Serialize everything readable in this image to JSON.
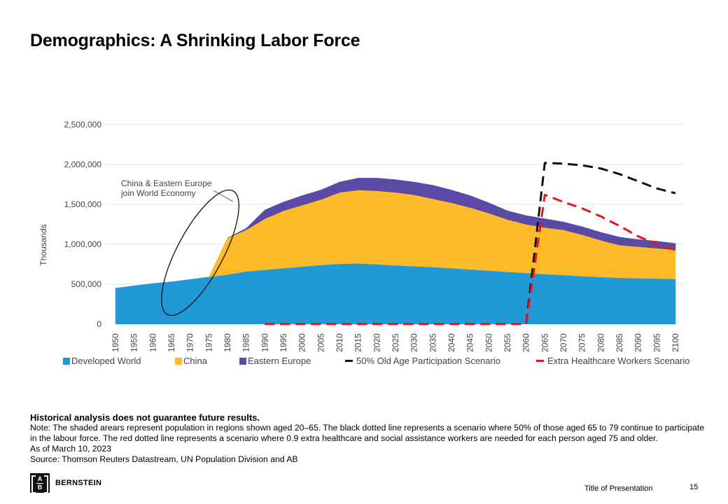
{
  "page": {
    "title": "Demographics: A Shrinking Labor Force",
    "disclaimer": "Historical analysis does not guarantee future results.",
    "note": "Note: The shaded arears represent population in regions shown aged 20–65. The black dotted line represents a scenario where 50% of those aged 65 to 79 continue to participate in the labour force. The red dotted line represents a scenario where 0.9 extra healthcare and social assistance workers are needed for each person aged 75 and older.",
    "as_of": "As of March 10, 2023",
    "source": "Source: Thomson Reuters Datastream, UN Population Division and AB",
    "footer_title": "Title of Presentation",
    "page_number": "15",
    "logo_text": "BERNSTEIN",
    "logo_letters": [
      "A",
      "B"
    ]
  },
  "chart_data": {
    "type": "area",
    "stacked": true,
    "title": "",
    "xlabel": "",
    "ylabel": "Thousands",
    "ylim": [
      0,
      2500000
    ],
    "yticks": [
      0,
      500000,
      1000000,
      1500000,
      2000000,
      2500000
    ],
    "ytick_labels": [
      "0",
      "500,000",
      "1,000,000",
      "1,500,000",
      "2,000,000",
      "2,500,000"
    ],
    "grid": true,
    "legend_position": "bottom",
    "annotation": {
      "line1": "China & Eastern Europe",
      "line2": "join World Economy"
    },
    "x": [
      "1950",
      "1955",
      "1960",
      "1965",
      "1970",
      "1975",
      "1980",
      "1985",
      "1990",
      "1995",
      "2000",
      "2005",
      "2010",
      "2015",
      "2020",
      "2025",
      "2030",
      "2035",
      "2040",
      "2045",
      "2050",
      "2055",
      "2060",
      "2065",
      "2070",
      "2075",
      "2080",
      "2085",
      "2090",
      "2095",
      "2100"
    ],
    "series": [
      {
        "name": "Developed World",
        "kind": "area",
        "color": "#2199D6",
        "values": [
          450000,
          480000,
          510000,
          530000,
          560000,
          590000,
          620000,
          660000,
          680000,
          700000,
          720000,
          740000,
          755000,
          760000,
          750000,
          735000,
          725000,
          715000,
          700000,
          685000,
          670000,
          655000,
          640000,
          625000,
          615000,
          600000,
          590000,
          580000,
          575000,
          570000,
          565000
        ]
      },
      {
        "name": "China",
        "kind": "area",
        "color": "#FDBB2A",
        "values": [
          0,
          0,
          0,
          0,
          0,
          0,
          460000,
          520000,
          640000,
          720000,
          770000,
          820000,
          895000,
          920000,
          920000,
          915000,
          895000,
          855000,
          820000,
          775000,
          720000,
          655000,
          610000,
          585000,
          565000,
          520000,
          460000,
          410000,
          395000,
          380000,
          365000
        ]
      },
      {
        "name": "Eastern Europe",
        "kind": "area",
        "color": "#5A4AA6",
        "values": [
          0,
          0,
          0,
          0,
          0,
          0,
          0,
          20000,
          110000,
          110000,
          120000,
          120000,
          130000,
          150000,
          160000,
          160000,
          160000,
          170000,
          160000,
          150000,
          130000,
          110000,
          110000,
          110000,
          100000,
          100000,
          100000,
          100000,
          90000,
          90000,
          80000
        ]
      },
      {
        "name": "50% Old Age Participation Scenario",
        "kind": "dashed-line",
        "color": "#111111",
        "values": [
          null,
          null,
          null,
          null,
          null,
          null,
          null,
          null,
          0,
          0,
          0,
          0,
          0,
          0,
          0,
          0,
          0,
          0,
          0,
          0,
          0,
          0,
          0,
          2020000,
          2010000,
          1990000,
          1950000,
          1880000,
          1790000,
          1700000,
          1640000
        ]
      },
      {
        "name": "Extra Healthcare Workers Scenario",
        "kind": "dashed-line",
        "color": "#E8141B",
        "values": [
          null,
          null,
          null,
          null,
          null,
          null,
          null,
          null,
          0,
          0,
          0,
          0,
          0,
          0,
          0,
          0,
          0,
          0,
          0,
          0,
          0,
          0,
          0,
          1620000,
          1530000,
          1450000,
          1350000,
          1230000,
          1100000,
          1000000,
          930000
        ]
      }
    ]
  }
}
